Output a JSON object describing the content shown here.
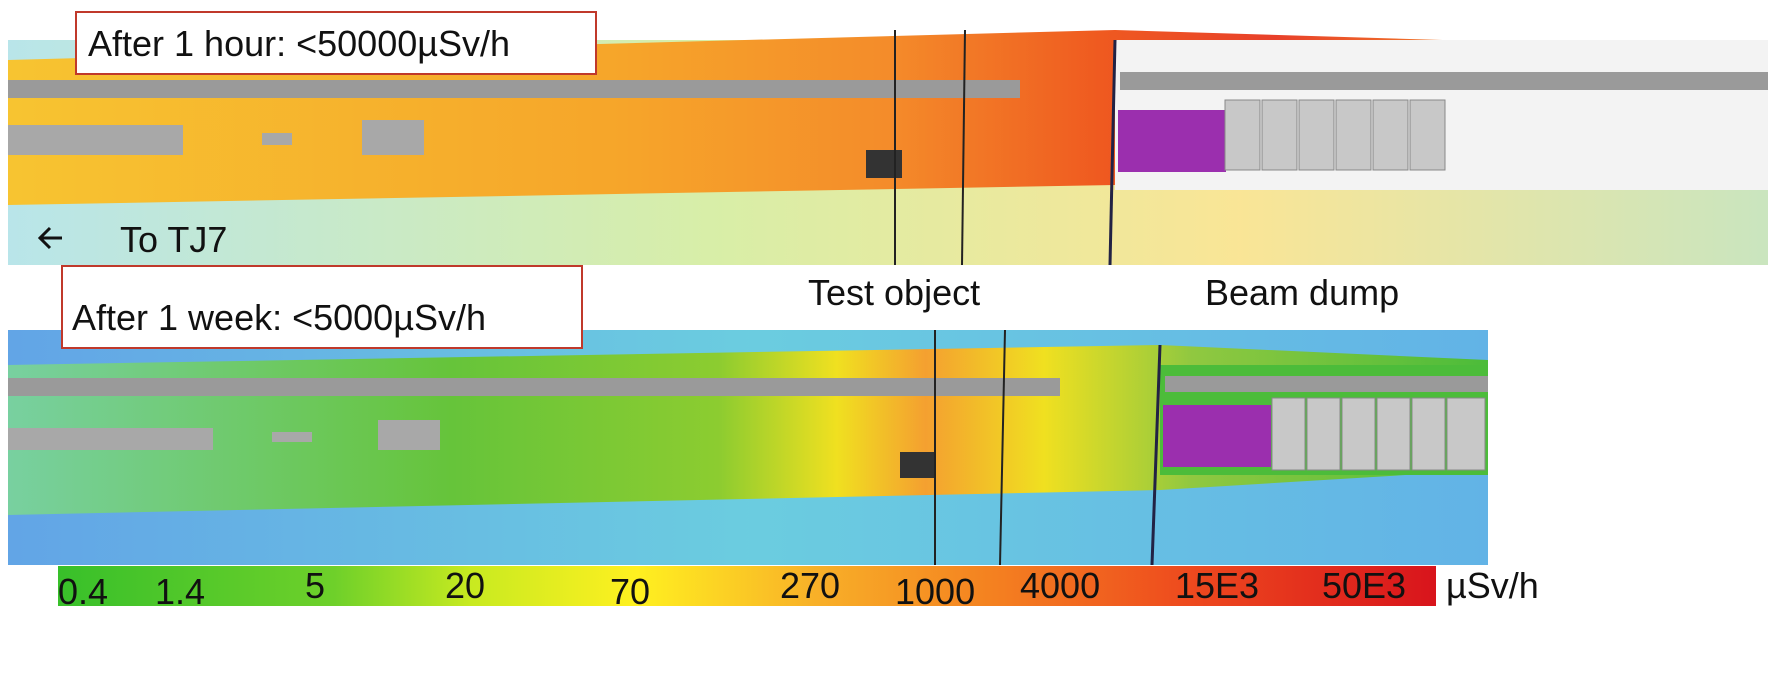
{
  "panels": [
    {
      "label": "After 1 hour: <50000µSv/h"
    },
    {
      "label": "After 1 week: <5000µSv/h"
    }
  ],
  "annotations": {
    "direction": "To TJ7",
    "test_object": "Test object",
    "beam_dump": "Beam dump"
  },
  "colorbar": {
    "labels": [
      "0.4",
      "1.4",
      "5",
      "20",
      "70",
      "270",
      "1000",
      "4000",
      "15E3",
      "50E3"
    ],
    "unit": "µSv/h"
  }
}
